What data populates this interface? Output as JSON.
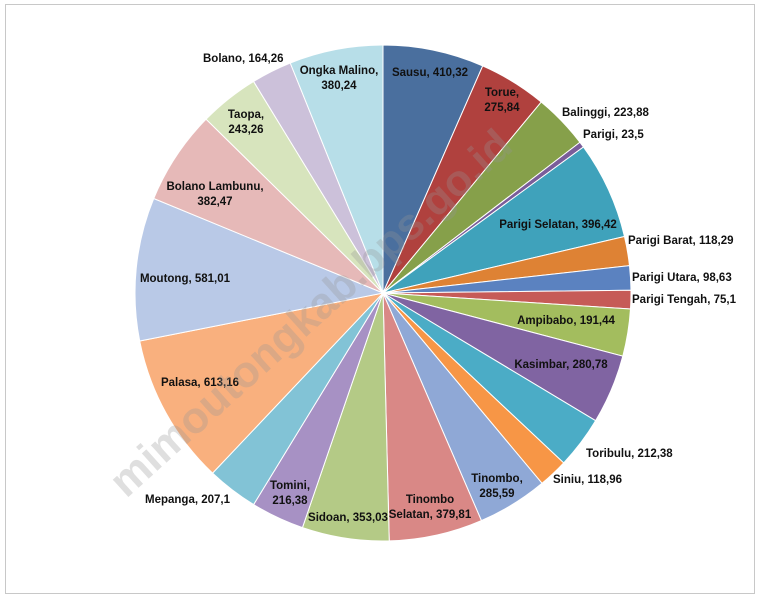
{
  "watermark": "mimoutongkab.bps.go.id",
  "chart_data": {
    "type": "pie",
    "categories": [
      "Sausu",
      "Torue",
      "Balinggi",
      "Parigi",
      "Parigi Selatan",
      "Parigi Barat",
      "Parigi Utara",
      "Parigi Tengah",
      "Ampibabo",
      "Kasimbar",
      "Toribulu",
      "Siniu",
      "Tinombo",
      "Tinombo Selatan",
      "Sidoan",
      "Tomini",
      "Mepanga",
      "Palasa",
      "Moutong",
      "Bolano Lambunu",
      "Taopa",
      "Bolano",
      "Ongka Malino"
    ],
    "values": [
      410.32,
      275.84,
      223.88,
      23.5,
      396.42,
      118.29,
      98.63,
      75.1,
      191.44,
      280.78,
      212.38,
      118.96,
      285.59,
      379.81,
      353.03,
      216.38,
      207.1,
      613.16,
      581.01,
      382.47,
      243.26,
      164.26,
      380.24
    ],
    "labels": [
      [
        "Sausu, 410,32"
      ],
      [
        "Torue,",
        "275,84"
      ],
      [
        "Balinggi, 223,88"
      ],
      [
        "Parigi, 23,5"
      ],
      [
        "Parigi Selatan, 396,42"
      ],
      [
        "Parigi Barat, 118,29"
      ],
      [
        "Parigi Utara, 98,63"
      ],
      [
        "Parigi Tengah, 75,1"
      ],
      [
        "Ampibabo, 191,44"
      ],
      [
        "Kasimbar, 280,78"
      ],
      [
        "Toribulu, 212,38"
      ],
      [
        "Siniu, 118,96"
      ],
      [
        "Tinombo,",
        "285,59"
      ],
      [
        "Tinombo",
        "Selatan, 379,81"
      ],
      [
        "Sidoan, 353,03"
      ],
      [
        "Tomini,",
        "216,38"
      ],
      [
        "Mepanga, 207,1"
      ],
      [
        "Palasa, 613,16"
      ],
      [
        "Moutong, 581,01"
      ],
      [
        "Bolano Lambunu,",
        "382,47"
      ],
      [
        "Taopa,",
        "243,26"
      ],
      [
        "Bolano, 164,26"
      ],
      [
        "Ongka Malino,",
        "380,24"
      ]
    ],
    "colors": [
      "#4a6f9e",
      "#b0413e",
      "#86a04a",
      "#7a5d9a",
      "#3fa2bb",
      "#de8234",
      "#5b82c0",
      "#c65b57",
      "#a3bd5e",
      "#8064a2",
      "#4bacc6",
      "#f79646",
      "#8fa8d6",
      "#d98886",
      "#b4ca86",
      "#a791c4",
      "#82c3d6",
      "#f9b07e",
      "#b9c9e7",
      "#e6b9b8",
      "#d7e4bd",
      "#ccc1da",
      "#b7dee8"
    ],
    "legend": "none",
    "start": "top"
  }
}
